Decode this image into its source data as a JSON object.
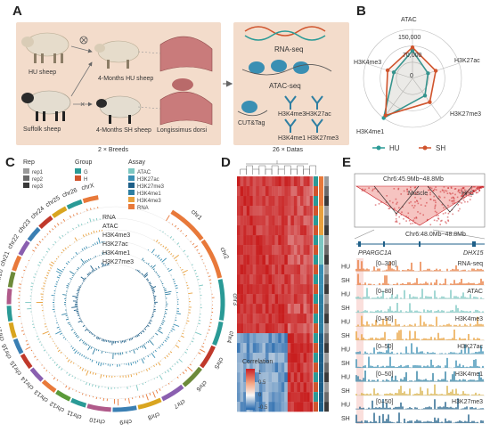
{
  "panel_labels": {
    "a": "A",
    "b": "B",
    "c": "C",
    "d": "D",
    "e": "E"
  },
  "panel_a": {
    "hu_sheep": "HU sheep",
    "suffolk_sheep": "Suffolk sheep",
    "hu_4m": "4-Months HU sheep",
    "sh_4m": "4-Months SH sheep",
    "tissue": "Longissimus dorsi",
    "breeds_note": "2 × Breeds",
    "rnaseq": "RNA-seq",
    "atacseq": "ATAC-seq",
    "cuttag": "CUT&Tag",
    "h3k4me3": "H3K4me3",
    "h3k27ac": "H3K27ac",
    "h3k4me1": "H3K4me1",
    "h3k27me3": "H3K27me3",
    "datas_note": "26 × Datas"
  },
  "panel_b": {
    "axes": [
      "ATAC",
      "H3K27ac",
      "H3K27me3",
      "H3K4me1",
      "H3K4me3"
    ],
    "ring_labels": [
      "150,000",
      "70,000",
      "0"
    ],
    "legend_hu": "HU",
    "legend_sh": "SH",
    "colors": {
      "hu": "#2a9a96",
      "sh": "#d0542d"
    },
    "chart_data": {
      "type": "radar",
      "axes": [
        "ATAC",
        "H3K27ac",
        "H3K27me3",
        "H3K4me1",
        "H3K4me3"
      ],
      "rlim": [
        0,
        150000
      ],
      "series": [
        {
          "name": "HU",
          "values": [
            85000,
            50000,
            65000,
            150000,
            60000
          ]
        },
        {
          "name": "SH",
          "values": [
            95000,
            75000,
            90000,
            140000,
            80000
          ]
        }
      ]
    }
  },
  "panel_c": {
    "legend_rep_title": "Rep",
    "reps": [
      "rep1",
      "rep2",
      "rep3"
    ],
    "rep_colors": [
      "#9a9a9a",
      "#6a6a6a",
      "#3a3a3a"
    ],
    "legend_group_title": "Group",
    "groups": [
      "G",
      "H"
    ],
    "group_colors": [
      "#2a9a96",
      "#d0542d"
    ],
    "legend_assay_title": "Assay",
    "assays": [
      "ATAC",
      "H3K27ac",
      "H3K27me3",
      "H3K4me1",
      "H3K4me3",
      "RNA"
    ],
    "assay_colors": [
      "#7cc7c2",
      "#3a8fb3",
      "#1e5f88",
      "#2e7fa2",
      "#e9a13d",
      "#e8793a"
    ],
    "track_labels": [
      "RNA",
      "ATAC",
      "H3K4me3",
      "H3K27ac",
      "H3K4me1",
      "H3K27me3"
    ],
    "chromosomes": [
      "chr1",
      "chr2",
      "chr3",
      "chr4",
      "chr5",
      "chr6",
      "chr7",
      "chr8",
      "chr9",
      "chr10",
      "chr11",
      "chr12",
      "chr13",
      "chr14",
      "chr15",
      "chr16",
      "chr17",
      "chr18",
      "chr19",
      "chr20",
      "chr21",
      "chr22",
      "chr23",
      "chr24",
      "chr25",
      "chr26",
      "chrX"
    ],
    "chrom_colors": [
      "#e8793a",
      "#e8793a",
      "#2a9a96",
      "#2a9a96",
      "#c0392b",
      "#6d8a3a",
      "#8a5fb0",
      "#d9a520",
      "#3a7fb3",
      "#b05a8a",
      "#2a9a96",
      "#5b9a3a",
      "#e8793a",
      "#8a5fb0",
      "#c0392b",
      "#3a7fb3",
      "#d9a520",
      "#2a9a96",
      "#b05a8a",
      "#6d8a3a",
      "#e8793a",
      "#8a5fb0",
      "#3a7fb3",
      "#c0392b",
      "#d9a520",
      "#2a9a96",
      "#e8793a"
    ]
  },
  "panel_d": {
    "legend_title": "Correlation",
    "legend_ticks": [
      "1",
      "0.5",
      "0",
      "-0.5"
    ],
    "sidebar_colors_1": [
      "#2a9a96",
      "#d0542d",
      "#2a9a96",
      "#d0542d",
      "#2a9a96",
      "#d0542d",
      "#2a9a96",
      "#d0542d",
      "#2a9a96",
      "#d0542d",
      "#2a9a96",
      "#d0542d",
      "#2a9a96",
      "#d0542d",
      "#2a9a96",
      "#d0542d",
      "#2a9a96",
      "#d0542d",
      "#2a9a96",
      "#d0542d",
      "#2a9a96",
      "#d0542d",
      "#2a9a96",
      "#d0542d"
    ],
    "sidebar_colors_2": [
      "#e8793a",
      "#e8793a",
      "#e8793a",
      "#e9a13d",
      "#e9a13d",
      "#e9a13d",
      "#7cc7c2",
      "#7cc7c2",
      "#7cc7c2",
      "#3a8fb3",
      "#3a8fb3",
      "#3a8fb3",
      "#2e7fa2",
      "#2e7fa2",
      "#2e7fa2",
      "#2e7fa2",
      "#1e5f88",
      "#1e5f88",
      "#1e5f88",
      "#1e5f88",
      "#1e5f88",
      "#1e5f88",
      "#1e5f88",
      "#1e5f88"
    ],
    "sidebar_colors_3": [
      "#9a9a9a",
      "#6a6a6a",
      "#3a3a3a",
      "#9a9a9a",
      "#6a6a6a",
      "#3a3a3a",
      "#9a9a9a",
      "#6a6a6a",
      "#3a3a3a",
      "#9a9a9a",
      "#6a6a6a",
      "#3a3a3a",
      "#9a9a9a",
      "#6a6a6a",
      "#3a3a3a",
      "#9a9a9a",
      "#6a6a6a",
      "#3a3a3a",
      "#9a9a9a",
      "#6a6a6a",
      "#3a3a3a",
      "#9a9a9a",
      "#6a6a6a",
      "#3a3a3a"
    ],
    "chart_data": {
      "type": "heatmap",
      "n": 24,
      "note_blocks": [
        {
          "from": 0,
          "to": 15,
          "corr": 0.9
        },
        {
          "from": 16,
          "to": 23,
          "corr": 0.95
        },
        {
          "between": "blocks",
          "corr": -0.4
        }
      ],
      "clim": [
        -0.5,
        1
      ]
    }
  },
  "panel_e": {
    "top_region": "Chr6:45.9Mb~48.8Mb",
    "muscle_label": "Muscle",
    "hic_label": "Hi-C",
    "zoom_region": "Chr6:48.0Mb~48.8Mb",
    "gene1": "PPARGC1A",
    "gene2": "DHX15",
    "tracks": [
      {
        "assay": "RNA-seq",
        "range": "[0–300]",
        "color_hu": "#e8793a",
        "color_sh": "#e8793a"
      },
      {
        "assay": "ATAC",
        "range": "[0–80]",
        "color_hu": "#7cc7c2",
        "color_sh": "#7cc7c2"
      },
      {
        "assay": "H3K4me3",
        "range": "[0–50]",
        "color_hu": "#e9a13d",
        "color_sh": "#e9a13d"
      },
      {
        "assay": "H3K27ac",
        "range": "[0–50]",
        "color_hu": "#3a8fb3",
        "color_sh": "#3a8fb3"
      },
      {
        "assay": "H3K4me1",
        "range": "[0–50]",
        "color_hu": "#2e7fa2",
        "color_sh": "#d9b24a"
      },
      {
        "assay": "H3K27me3",
        "range": "[0–50]",
        "color_hu": "#1e5f88",
        "color_sh": "#1e5f88"
      }
    ],
    "row_hu": "HU",
    "row_sh": "SH"
  }
}
